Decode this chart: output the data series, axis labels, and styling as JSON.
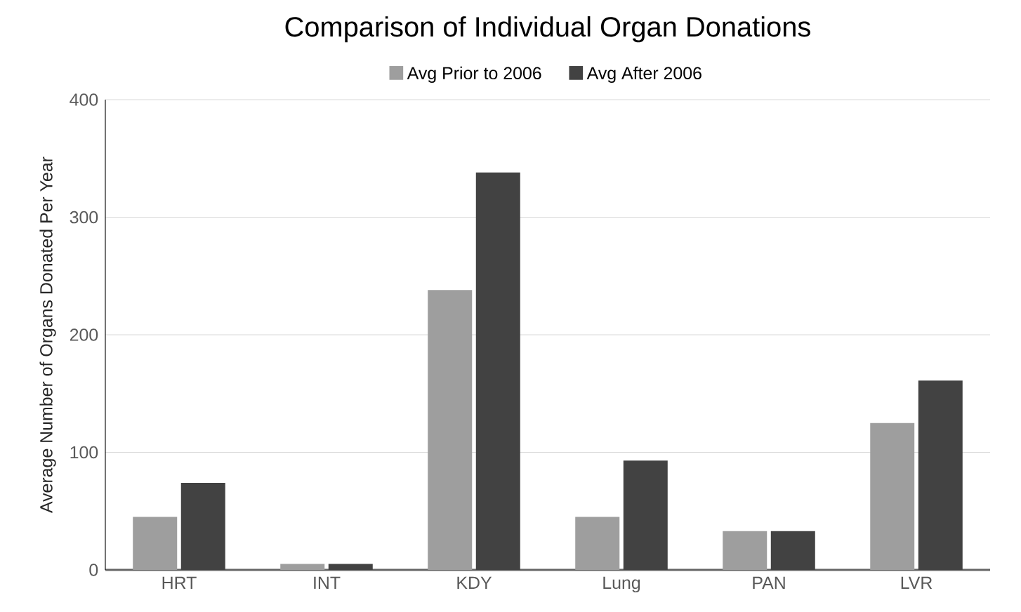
{
  "chart_data": {
    "type": "bar",
    "title": "Comparison of Individual Organ Donations",
    "ylabel": "Average Number of Organs Donated Per Year",
    "categories": [
      "HRT",
      "INT",
      "KDY",
      "Lung",
      "PAN",
      "LVR"
    ],
    "series": [
      {
        "name": "Avg Prior to 2006",
        "color": "#9e9e9e",
        "values": [
          45,
          5,
          238,
          45,
          33,
          125
        ]
      },
      {
        "name": "Avg After 2006",
        "color": "#424242",
        "values": [
          74,
          5,
          338,
          93,
          33,
          161
        ]
      }
    ],
    "ylim": [
      0,
      400
    ],
    "yticks": [
      0,
      100,
      200,
      300,
      400
    ],
    "grid": "y",
    "legend": "top"
  }
}
